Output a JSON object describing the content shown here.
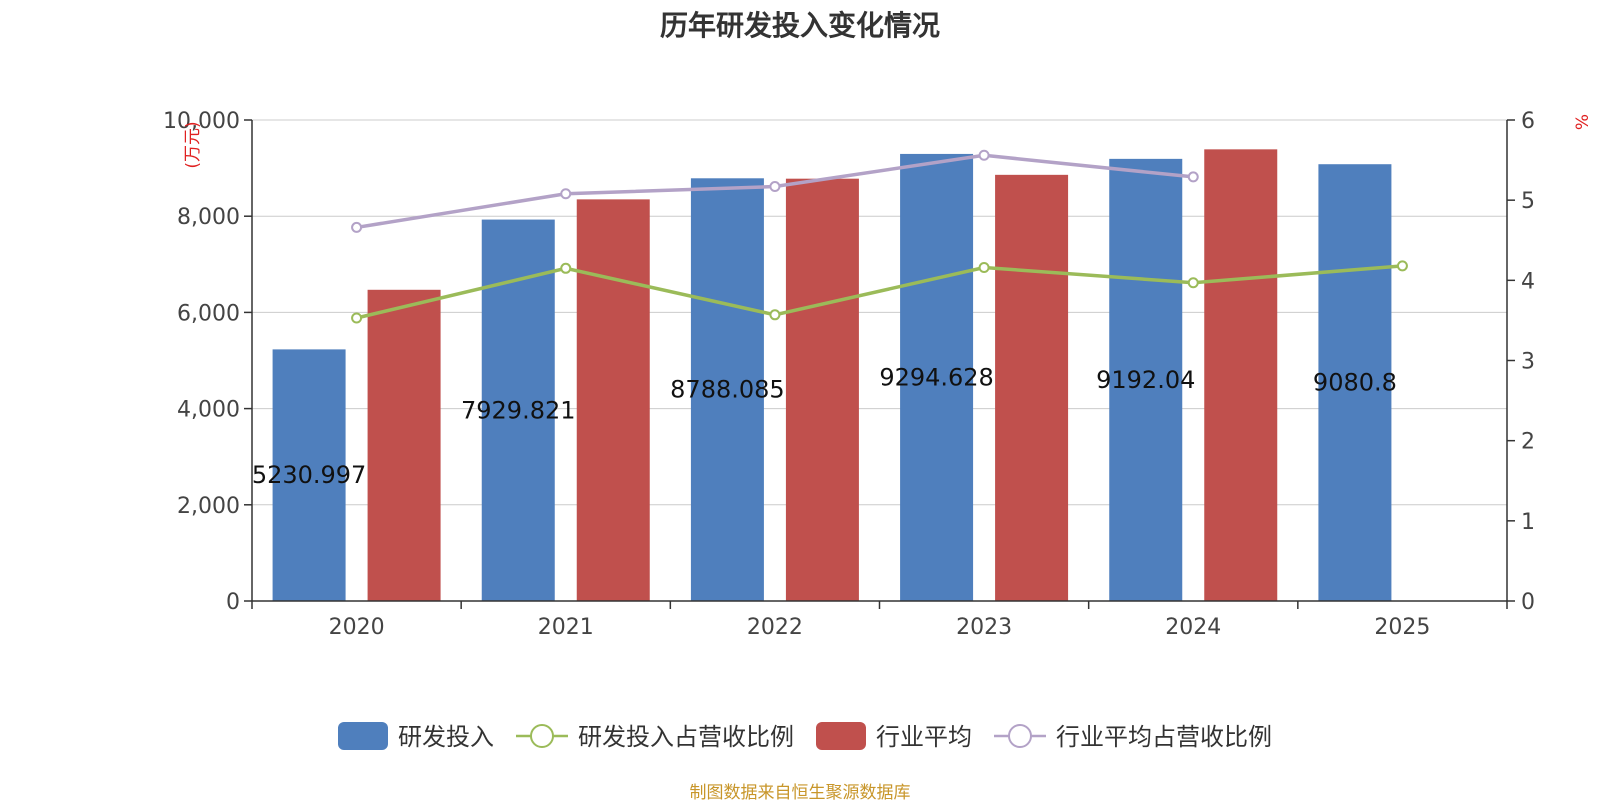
{
  "chart_data": {
    "type": "bar",
    "title": "历年研发投入变化情况",
    "categories": [
      "2020",
      "2021",
      "2022",
      "2023",
      "2024",
      "2025"
    ],
    "y_left": {
      "unit": "万元",
      "range": [
        0,
        10000
      ],
      "ticks": [
        "0",
        "2,000",
        "4,000",
        "6,000",
        "8,000",
        "10,000"
      ]
    },
    "y_right": {
      "unit": "%",
      "range": [
        0,
        6
      ],
      "ticks": [
        "0",
        "1",
        "2",
        "3",
        "4",
        "5",
        "6"
      ]
    },
    "series": [
      {
        "name": "研发投入",
        "kind": "bar",
        "axis": "left",
        "color": "#4f7fbd",
        "values": [
          5230.997,
          7929.821,
          8788.085,
          9294.628,
          9192.04,
          9080.8
        ],
        "labels": [
          "5230.997",
          "7929.821",
          "8788.085",
          "9294.628",
          "9192.04",
          "9080.8"
        ]
      },
      {
        "name": "研发投入占营收比例",
        "kind": "line",
        "axis": "right",
        "color": "#9bbb59",
        "values": [
          3.53,
          4.15,
          3.57,
          4.16,
          3.97,
          4.18
        ]
      },
      {
        "name": "行业平均",
        "kind": "bar",
        "axis": "left",
        "color": "#c0504d",
        "values": [
          6470,
          8350,
          8780,
          8860,
          9390,
          null
        ]
      },
      {
        "name": "行业平均占营收比例",
        "kind": "line",
        "axis": "right",
        "color": "#b3a2c7",
        "values": [
          4.66,
          5.08,
          5.17,
          5.56,
          5.29,
          null
        ]
      }
    ],
    "grid": true,
    "legend_position": "bottom"
  },
  "footer": {
    "source": "制图数据来自恒生聚源数据库"
  }
}
